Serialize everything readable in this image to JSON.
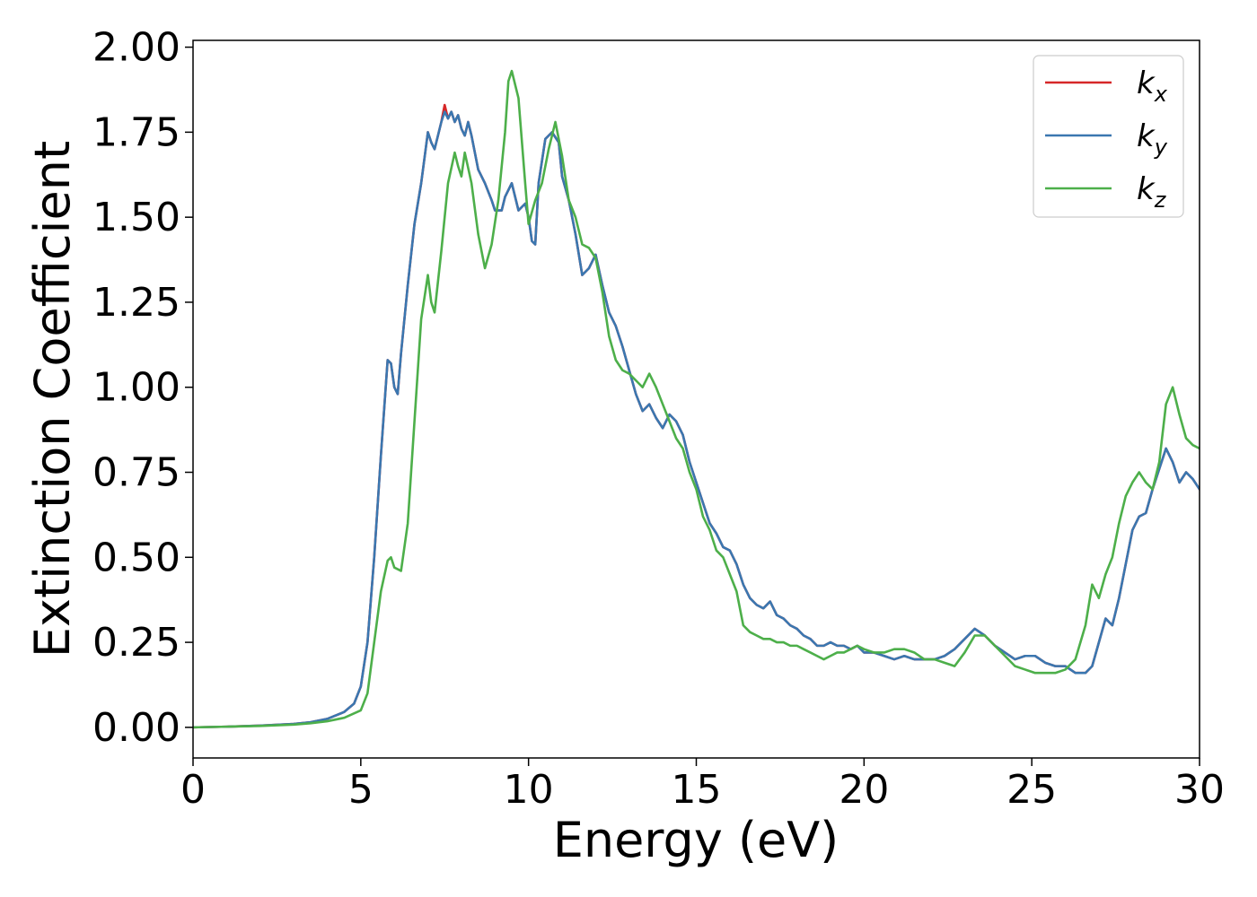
{
  "chart_data": {
    "type": "line",
    "title": "",
    "xlabel": "Energy (eV)",
    "ylabel": "Extinction Coefficient",
    "xlim": [
      0,
      30
    ],
    "ylim": [
      -0.09,
      2.02
    ],
    "xticks": [
      0,
      5,
      10,
      15,
      20,
      25,
      30
    ],
    "xtick_labels": [
      "0",
      "5",
      "10",
      "15",
      "20",
      "25",
      "30"
    ],
    "yticks": [
      0,
      0.25,
      0.5,
      0.75,
      1.0,
      1.25,
      1.5,
      1.75,
      2.0
    ],
    "ytick_labels": [
      "0.00",
      "0.25",
      "0.50",
      "0.75",
      "1.00",
      "1.25",
      "1.50",
      "1.75",
      "2.00"
    ],
    "grid": false,
    "legend_position": "top-right",
    "series": [
      {
        "name": "k",
        "subscript": "x",
        "color": "#d62728",
        "x": [
          0,
          1,
          2,
          3,
          3.5,
          4,
          4.5,
          4.8,
          5.0,
          5.2,
          5.4,
          5.6,
          5.8,
          5.9,
          6.0,
          6.1,
          6.2,
          6.4,
          6.6,
          6.8,
          7.0,
          7.1,
          7.2,
          7.3,
          7.4,
          7.5,
          7.6,
          7.7,
          7.8,
          7.9,
          8.0,
          8.1,
          8.2,
          8.3,
          8.5,
          8.7,
          8.9,
          9.0,
          9.2,
          9.3,
          9.5,
          9.7,
          9.9,
          10.0,
          10.1,
          10.2,
          10.3,
          10.5,
          10.7,
          10.9,
          11.0,
          11.2,
          11.4,
          11.6,
          11.8,
          12.0,
          12.2,
          12.4,
          12.6,
          12.8,
          13.0,
          13.2,
          13.4,
          13.6,
          13.8,
          14.0,
          14.2,
          14.4,
          14.6,
          14.8,
          15.0,
          15.2,
          15.4,
          15.6,
          15.8,
          16.0,
          16.2,
          16.4,
          16.6,
          16.8,
          17.0,
          17.2,
          17.4,
          17.6,
          17.8,
          18.0,
          18.2,
          18.4,
          18.6,
          18.8,
          19.0,
          19.2,
          19.4,
          19.6,
          19.8,
          20.0,
          20.3,
          20.6,
          20.9,
          21.2,
          21.5,
          21.8,
          22.1,
          22.4,
          22.7,
          23.0,
          23.3,
          23.6,
          23.9,
          24.2,
          24.5,
          24.8,
          25.1,
          25.4,
          25.7,
          26.0,
          26.3,
          26.6,
          26.8,
          27.0,
          27.2,
          27.4,
          27.6,
          27.8,
          28.0,
          28.2,
          28.4,
          28.6,
          28.8,
          29.0,
          29.2,
          29.4,
          29.6,
          29.8,
          30.0
        ],
        "y": [
          0.0,
          0.002,
          0.005,
          0.01,
          0.015,
          0.025,
          0.045,
          0.07,
          0.12,
          0.25,
          0.5,
          0.8,
          1.08,
          1.07,
          1.0,
          0.98,
          1.1,
          1.3,
          1.48,
          1.6,
          1.75,
          1.72,
          1.7,
          1.74,
          1.78,
          1.83,
          1.79,
          1.81,
          1.78,
          1.8,
          1.76,
          1.74,
          1.78,
          1.74,
          1.64,
          1.6,
          1.55,
          1.52,
          1.52,
          1.56,
          1.6,
          1.52,
          1.54,
          1.5,
          1.43,
          1.42,
          1.6,
          1.73,
          1.75,
          1.72,
          1.62,
          1.55,
          1.45,
          1.33,
          1.35,
          1.39,
          1.3,
          1.22,
          1.18,
          1.12,
          1.05,
          0.98,
          0.93,
          0.95,
          0.91,
          0.88,
          0.92,
          0.9,
          0.86,
          0.78,
          0.72,
          0.66,
          0.6,
          0.57,
          0.53,
          0.52,
          0.48,
          0.42,
          0.38,
          0.36,
          0.35,
          0.37,
          0.33,
          0.32,
          0.3,
          0.29,
          0.27,
          0.26,
          0.24,
          0.24,
          0.25,
          0.24,
          0.24,
          0.23,
          0.24,
          0.22,
          0.22,
          0.21,
          0.2,
          0.21,
          0.2,
          0.2,
          0.2,
          0.21,
          0.23,
          0.26,
          0.29,
          0.27,
          0.24,
          0.22,
          0.2,
          0.21,
          0.21,
          0.19,
          0.18,
          0.18,
          0.16,
          0.16,
          0.18,
          0.25,
          0.32,
          0.3,
          0.38,
          0.48,
          0.58,
          0.62,
          0.63,
          0.7,
          0.76,
          0.82,
          0.78,
          0.72,
          0.75,
          0.73,
          0.7
        ]
      },
      {
        "name": "k",
        "subscript": "y",
        "color": "#3a77b0",
        "x": [
          0,
          1,
          2,
          3,
          3.5,
          4,
          4.5,
          4.8,
          5.0,
          5.2,
          5.4,
          5.6,
          5.8,
          5.9,
          6.0,
          6.1,
          6.2,
          6.4,
          6.6,
          6.8,
          7.0,
          7.1,
          7.2,
          7.3,
          7.4,
          7.5,
          7.6,
          7.7,
          7.8,
          7.9,
          8.0,
          8.1,
          8.2,
          8.3,
          8.5,
          8.7,
          8.9,
          9.0,
          9.2,
          9.3,
          9.5,
          9.7,
          9.9,
          10.0,
          10.1,
          10.2,
          10.3,
          10.5,
          10.7,
          10.9,
          11.0,
          11.2,
          11.4,
          11.6,
          11.8,
          12.0,
          12.2,
          12.4,
          12.6,
          12.8,
          13.0,
          13.2,
          13.4,
          13.6,
          13.8,
          14.0,
          14.2,
          14.4,
          14.6,
          14.8,
          15.0,
          15.2,
          15.4,
          15.6,
          15.8,
          16.0,
          16.2,
          16.4,
          16.6,
          16.8,
          17.0,
          17.2,
          17.4,
          17.6,
          17.8,
          18.0,
          18.2,
          18.4,
          18.6,
          18.8,
          19.0,
          19.2,
          19.4,
          19.6,
          19.8,
          20.0,
          20.3,
          20.6,
          20.9,
          21.2,
          21.5,
          21.8,
          22.1,
          22.4,
          22.7,
          23.0,
          23.3,
          23.6,
          23.9,
          24.2,
          24.5,
          24.8,
          25.1,
          25.4,
          25.7,
          26.0,
          26.3,
          26.6,
          26.8,
          27.0,
          27.2,
          27.4,
          27.6,
          27.8,
          28.0,
          28.2,
          28.4,
          28.6,
          28.8,
          29.0,
          29.2,
          29.4,
          29.6,
          29.8,
          30.0
        ],
        "y": [
          0.0,
          0.002,
          0.005,
          0.01,
          0.015,
          0.025,
          0.045,
          0.07,
          0.12,
          0.25,
          0.5,
          0.8,
          1.08,
          1.07,
          1.0,
          0.98,
          1.1,
          1.3,
          1.48,
          1.6,
          1.75,
          1.72,
          1.7,
          1.74,
          1.78,
          1.81,
          1.79,
          1.81,
          1.78,
          1.8,
          1.76,
          1.74,
          1.78,
          1.74,
          1.64,
          1.6,
          1.55,
          1.52,
          1.52,
          1.56,
          1.6,
          1.52,
          1.54,
          1.5,
          1.43,
          1.42,
          1.6,
          1.73,
          1.75,
          1.72,
          1.62,
          1.55,
          1.45,
          1.33,
          1.35,
          1.39,
          1.3,
          1.22,
          1.18,
          1.12,
          1.05,
          0.98,
          0.93,
          0.95,
          0.91,
          0.88,
          0.92,
          0.9,
          0.86,
          0.78,
          0.72,
          0.66,
          0.6,
          0.57,
          0.53,
          0.52,
          0.48,
          0.42,
          0.38,
          0.36,
          0.35,
          0.37,
          0.33,
          0.32,
          0.3,
          0.29,
          0.27,
          0.26,
          0.24,
          0.24,
          0.25,
          0.24,
          0.24,
          0.23,
          0.24,
          0.22,
          0.22,
          0.21,
          0.2,
          0.21,
          0.2,
          0.2,
          0.2,
          0.21,
          0.23,
          0.26,
          0.29,
          0.27,
          0.24,
          0.22,
          0.2,
          0.21,
          0.21,
          0.19,
          0.18,
          0.18,
          0.16,
          0.16,
          0.18,
          0.25,
          0.32,
          0.3,
          0.38,
          0.48,
          0.58,
          0.62,
          0.63,
          0.7,
          0.76,
          0.82,
          0.78,
          0.72,
          0.75,
          0.73,
          0.7
        ]
      },
      {
        "name": "k",
        "subscript": "z",
        "color": "#4daf4a",
        "x": [
          0,
          1,
          2,
          3,
          3.5,
          4,
          4.5,
          5.0,
          5.2,
          5.4,
          5.6,
          5.8,
          5.9,
          6.0,
          6.2,
          6.4,
          6.6,
          6.8,
          7.0,
          7.1,
          7.2,
          7.4,
          7.6,
          7.8,
          7.9,
          8.0,
          8.1,
          8.3,
          8.5,
          8.7,
          8.9,
          9.1,
          9.3,
          9.4,
          9.5,
          9.7,
          9.9,
          10.0,
          10.2,
          10.4,
          10.6,
          10.8,
          11.0,
          11.2,
          11.4,
          11.6,
          11.8,
          12.0,
          12.2,
          12.4,
          12.6,
          12.8,
          13.0,
          13.2,
          13.4,
          13.6,
          13.8,
          14.0,
          14.2,
          14.4,
          14.6,
          14.8,
          15.0,
          15.2,
          15.4,
          15.6,
          15.8,
          16.0,
          16.2,
          16.4,
          16.6,
          16.8,
          17.0,
          17.2,
          17.4,
          17.6,
          17.8,
          18.0,
          18.2,
          18.4,
          18.6,
          18.8,
          19.0,
          19.2,
          19.4,
          19.6,
          19.8,
          20.0,
          20.3,
          20.6,
          20.9,
          21.2,
          21.5,
          21.8,
          22.1,
          22.4,
          22.7,
          23.0,
          23.3,
          23.6,
          23.9,
          24.2,
          24.5,
          24.8,
          25.1,
          25.4,
          25.7,
          26.0,
          26.3,
          26.6,
          26.8,
          27.0,
          27.2,
          27.4,
          27.6,
          27.8,
          28.0,
          28.2,
          28.4,
          28.6,
          28.8,
          29.0,
          29.2,
          29.4,
          29.6,
          29.8,
          30.0
        ],
        "y": [
          0.0,
          0.002,
          0.004,
          0.008,
          0.012,
          0.018,
          0.028,
          0.05,
          0.1,
          0.25,
          0.4,
          0.49,
          0.5,
          0.47,
          0.46,
          0.6,
          0.9,
          1.2,
          1.33,
          1.25,
          1.22,
          1.4,
          1.6,
          1.69,
          1.65,
          1.62,
          1.69,
          1.6,
          1.45,
          1.35,
          1.42,
          1.55,
          1.75,
          1.9,
          1.93,
          1.85,
          1.6,
          1.48,
          1.55,
          1.6,
          1.7,
          1.78,
          1.68,
          1.55,
          1.5,
          1.42,
          1.41,
          1.38,
          1.28,
          1.15,
          1.08,
          1.05,
          1.04,
          1.02,
          1.0,
          1.04,
          1.0,
          0.95,
          0.9,
          0.85,
          0.82,
          0.75,
          0.7,
          0.62,
          0.58,
          0.52,
          0.5,
          0.45,
          0.4,
          0.3,
          0.28,
          0.27,
          0.26,
          0.26,
          0.25,
          0.25,
          0.24,
          0.24,
          0.23,
          0.22,
          0.21,
          0.2,
          0.21,
          0.22,
          0.22,
          0.23,
          0.24,
          0.23,
          0.22,
          0.22,
          0.23,
          0.23,
          0.22,
          0.2,
          0.2,
          0.19,
          0.18,
          0.22,
          0.27,
          0.27,
          0.24,
          0.21,
          0.18,
          0.17,
          0.16,
          0.16,
          0.16,
          0.17,
          0.2,
          0.3,
          0.42,
          0.38,
          0.45,
          0.5,
          0.6,
          0.68,
          0.72,
          0.75,
          0.72,
          0.7,
          0.78,
          0.95,
          1.0,
          0.92,
          0.85,
          0.83,
          0.82
        ]
      }
    ]
  }
}
